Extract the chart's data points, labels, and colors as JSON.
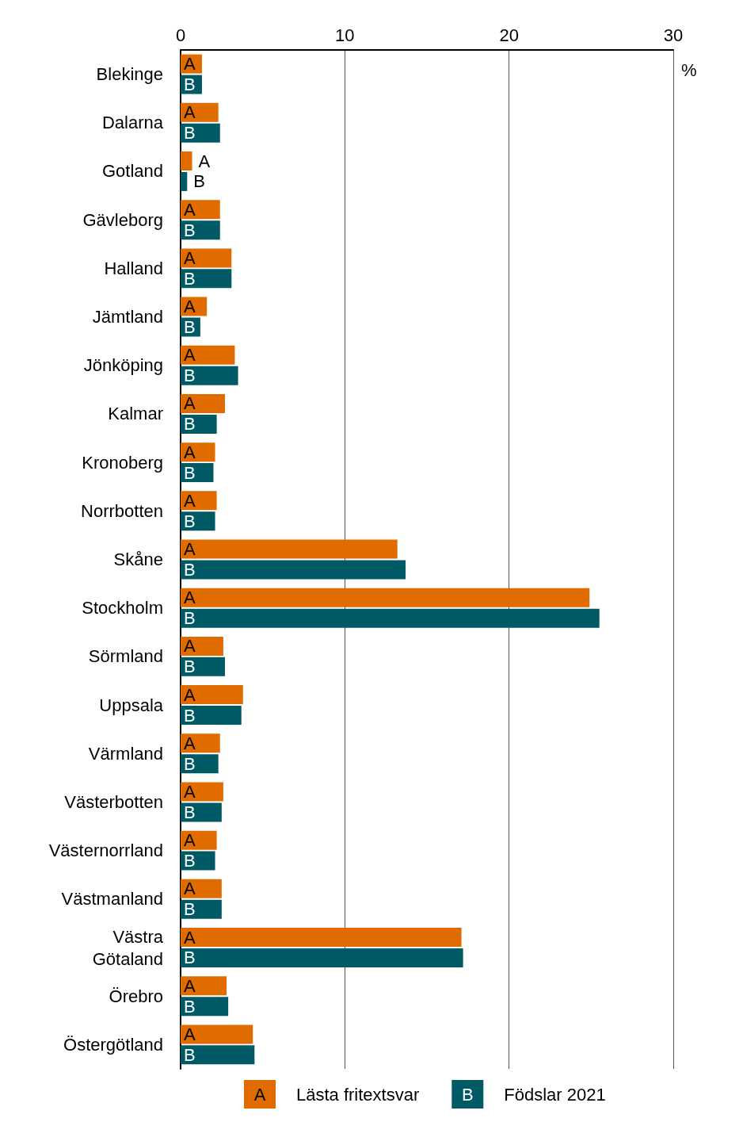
{
  "chart_data": {
    "type": "bar",
    "orientation": "horizontal",
    "xlabel": "%",
    "categories": [
      "Blekinge",
      "Dalarna",
      "Gotland",
      "Gävleborg",
      "Halland",
      "Jämtland",
      "Jönköping",
      "Kalmar",
      "Kronoberg",
      "Norrbotten",
      "Skåne",
      "Stockholm",
      "Sörmland",
      "Uppsala",
      "Värmland",
      "Västerbotten",
      "Västernorrland",
      "Västmanland",
      "Västra\nGötaland",
      "Örebro",
      "Östergötland"
    ],
    "series": [
      {
        "name": "Lästa fritextsvar",
        "color": "#e06c00",
        "values": [
          1.3,
          2.3,
          0.7,
          2.4,
          3.1,
          1.6,
          3.3,
          2.7,
          2.1,
          2.2,
          13.2,
          24.9,
          2.6,
          3.8,
          2.4,
          2.6,
          2.2,
          2.5,
          17.1,
          2.8,
          4.4
        ],
        "value_labels": [
          "A",
          "A",
          "A",
          "A",
          "A",
          "A",
          "A",
          "A",
          "A",
          "A",
          "A",
          "A",
          "A",
          "A",
          "A",
          "A",
          "A",
          "A",
          "A",
          "A",
          "A"
        ]
      },
      {
        "name": "Födslar 2021",
        "color": "#005a66",
        "values": [
          1.3,
          2.4,
          0.4,
          2.4,
          3.1,
          1.2,
          3.5,
          2.2,
          2.0,
          2.1,
          13.7,
          25.5,
          2.7,
          3.7,
          2.3,
          2.5,
          2.1,
          2.5,
          17.2,
          2.9,
          4.5
        ],
        "value_labels": [
          "B",
          "B",
          "B",
          "B",
          "B",
          "B",
          "B",
          "B",
          "B",
          "B",
          "B",
          "B",
          "B",
          "B",
          "B",
          "B",
          "B",
          "B",
          "B",
          "B",
          "B"
        ]
      }
    ],
    "xlim": [
      0,
      30
    ],
    "xticks": [
      0,
      10,
      20,
      30
    ],
    "grid": "x",
    "legend": "bottom"
  }
}
